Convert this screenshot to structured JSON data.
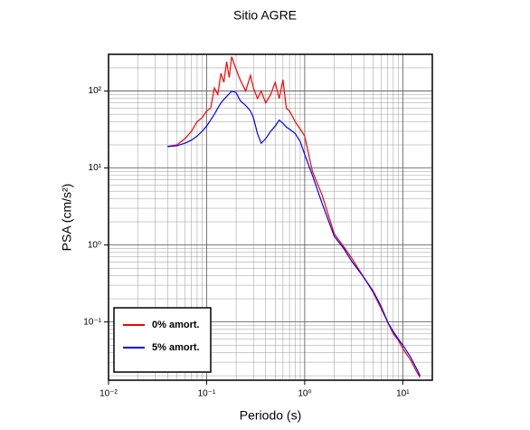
{
  "chart_data": {
    "type": "line",
    "title": "Sitio AGRE",
    "xlabel": "Periodo (s)",
    "ylabel": "PSA (cm/s²)",
    "xscale": "log",
    "yscale": "log",
    "grid": true,
    "legend": "lower left",
    "xlim": [
      0.01,
      20
    ],
    "ylim": [
      0.0175,
      300
    ],
    "xticks": [
      {
        "value": 0.01,
        "label": "10⁻²"
      },
      {
        "value": 0.1,
        "label": "10⁻¹"
      },
      {
        "value": 1,
        "label": "10⁰"
      },
      {
        "value": 10,
        "label": "10¹"
      }
    ],
    "yticks": [
      {
        "value": 0.1,
        "label": "10⁻¹"
      },
      {
        "value": 1,
        "label": "10⁰"
      },
      {
        "value": 10,
        "label": "10¹"
      },
      {
        "value": 100,
        "label": "10²"
      }
    ],
    "xminorticks": [
      0.02,
      0.03,
      0.04,
      0.05,
      0.06,
      0.07,
      0.08,
      0.09,
      0.2,
      0.3,
      0.4,
      0.5,
      0.6,
      0.7,
      0.8,
      0.9,
      2,
      3,
      4,
      5,
      6,
      7,
      8,
      9
    ],
    "yminorticks": [
      0.02,
      0.03,
      0.04,
      0.05,
      0.06,
      0.07,
      0.08,
      0.09,
      0.2,
      0.3,
      0.4,
      0.5,
      0.6,
      0.7,
      0.8,
      0.9,
      2,
      3,
      4,
      5,
      6,
      7,
      8,
      9,
      20,
      30,
      40,
      50,
      60,
      70,
      80,
      90,
      200
    ],
    "x": [
      0.04,
      0.05,
      0.06,
      0.07,
      0.08,
      0.09,
      0.1,
      0.11,
      0.12,
      0.13,
      0.14,
      0.15,
      0.16,
      0.17,
      0.18,
      0.2,
      0.22,
      0.25,
      0.28,
      0.3,
      0.33,
      0.36,
      0.4,
      0.45,
      0.5,
      0.55,
      0.6,
      0.65,
      0.7,
      0.8,
      0.9,
      1.0,
      1.2,
      1.5,
      2,
      2.5,
      3,
      4,
      5,
      6,
      7,
      8,
      9,
      10,
      12,
      14,
      15
    ],
    "series": [
      {
        "name": "0% amort.",
        "color": "#ff0000",
        "values": [
          19,
          20,
          24,
          30,
          40,
          45,
          55,
          60,
          110,
          90,
          170,
          130,
          240,
          150,
          280,
          190,
          140,
          100,
          160,
          110,
          80,
          100,
          70,
          90,
          130,
          80,
          140,
          60,
          55,
          40,
          32,
          26,
          9,
          4.5,
          1.4,
          0.95,
          0.68,
          0.38,
          0.24,
          0.15,
          0.1,
          0.07,
          0.058,
          0.045,
          0.032,
          0.022,
          0.019
        ]
      },
      {
        "name": "5% amort.",
        "color": "#0000ff",
        "values": [
          19,
          19.5,
          21,
          23,
          26,
          30,
          35,
          42,
          50,
          60,
          70,
          78,
          85,
          92,
          100,
          95,
          75,
          65,
          55,
          45,
          28,
          21,
          24,
          30,
          35,
          42,
          38,
          34,
          32,
          28,
          22,
          15,
          8,
          3.5,
          1.3,
          0.9,
          0.62,
          0.38,
          0.25,
          0.16,
          0.1,
          0.075,
          0.06,
          0.05,
          0.035,
          0.024,
          0.02
        ]
      }
    ]
  }
}
